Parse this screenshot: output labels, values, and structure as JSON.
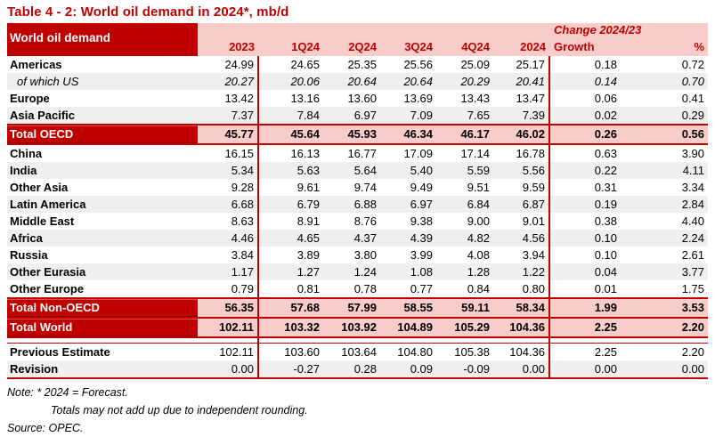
{
  "title": "Table 4 - 2: World oil demand in 2024*, mb/d",
  "colors": {
    "dark_red": "#C00000",
    "pink": "#F8CCC8",
    "stripe_gray": "#EFEFEF",
    "text": "#000000",
    "total_label_text": "#FFFFFF"
  },
  "header": {
    "label": "World oil demand",
    "change_label": "Change 2024/23",
    "columns": [
      "2023",
      "1Q24",
      "2Q24",
      "3Q24",
      "4Q24",
      "2024",
      "Growth",
      "%"
    ]
  },
  "rows": [
    {
      "label": "Americas",
      "type": "normal",
      "values": [
        "24.99",
        "24.65",
        "25.35",
        "25.56",
        "25.09",
        "25.17",
        "0.18",
        "0.72"
      ]
    },
    {
      "label": "of which US",
      "type": "italic",
      "values": [
        "20.27",
        "20.06",
        "20.64",
        "20.64",
        "20.29",
        "20.41",
        "0.14",
        "0.70"
      ]
    },
    {
      "label": "Europe",
      "type": "normal",
      "values": [
        "13.42",
        "13.16",
        "13.60",
        "13.69",
        "13.43",
        "13.47",
        "0.06",
        "0.41"
      ]
    },
    {
      "label": "Asia Pacific",
      "type": "normal",
      "values": [
        "7.37",
        "7.84",
        "6.97",
        "7.09",
        "7.65",
        "7.39",
        "0.02",
        "0.29"
      ]
    },
    {
      "label": "Total OECD",
      "type": "total",
      "values": [
        "45.77",
        "45.64",
        "45.93",
        "46.34",
        "46.17",
        "46.02",
        "0.26",
        "0.56"
      ]
    },
    {
      "label": "China",
      "type": "normal",
      "values": [
        "16.15",
        "16.13",
        "16.77",
        "17.09",
        "17.14",
        "16.78",
        "0.63",
        "3.90"
      ]
    },
    {
      "label": "India",
      "type": "normal",
      "values": [
        "5.34",
        "5.63",
        "5.64",
        "5.40",
        "5.59",
        "5.56",
        "0.22",
        "4.11"
      ]
    },
    {
      "label": "Other Asia",
      "type": "normal",
      "values": [
        "9.28",
        "9.61",
        "9.74",
        "9.49",
        "9.51",
        "9.59",
        "0.31",
        "3.34"
      ]
    },
    {
      "label": "Latin America",
      "type": "normal",
      "values": [
        "6.68",
        "6.79",
        "6.88",
        "6.97",
        "6.84",
        "6.87",
        "0.19",
        "2.84"
      ]
    },
    {
      "label": "Middle East",
      "type": "normal",
      "values": [
        "8.63",
        "8.91",
        "8.76",
        "9.38",
        "9.00",
        "9.01",
        "0.38",
        "4.40"
      ]
    },
    {
      "label": "Africa",
      "type": "normal",
      "values": [
        "4.46",
        "4.65",
        "4.37",
        "4.39",
        "4.82",
        "4.56",
        "0.10",
        "2.24"
      ]
    },
    {
      "label": "Russia",
      "type": "normal",
      "values": [
        "3.84",
        "3.89",
        "3.80",
        "3.99",
        "4.08",
        "3.94",
        "0.10",
        "2.61"
      ]
    },
    {
      "label": "Other Eurasia",
      "type": "normal",
      "values": [
        "1.17",
        "1.27",
        "1.24",
        "1.08",
        "1.28",
        "1.22",
        "0.04",
        "3.77"
      ]
    },
    {
      "label": "Other Europe",
      "type": "normal",
      "values": [
        "0.79",
        "0.81",
        "0.78",
        "0.77",
        "0.84",
        "0.80",
        "0.01",
        "1.75"
      ]
    },
    {
      "label": "Total Non-OECD",
      "type": "total",
      "values": [
        "56.35",
        "57.68",
        "57.99",
        "58.55",
        "59.11",
        "58.34",
        "1.99",
        "3.53"
      ]
    },
    {
      "label": "Total World",
      "type": "total",
      "values": [
        "102.11",
        "103.32",
        "103.92",
        "104.89",
        "105.29",
        "104.36",
        "2.25",
        "2.20"
      ]
    }
  ],
  "estimate_rows": [
    {
      "label": "Previous Estimate",
      "type": "normal",
      "values": [
        "102.11",
        "103.60",
        "103.64",
        "104.80",
        "105.38",
        "104.36",
        "2.25",
        "2.20"
      ]
    },
    {
      "label": "Revision",
      "type": "normal",
      "values": [
        "0.00",
        "-0.27",
        "0.28",
        "0.09",
        "-0.09",
        "0.00",
        "0.00",
        "0.00"
      ]
    }
  ],
  "notes": {
    "note": "Note: * 2024 = Forecast.",
    "note2": "Totals may not add up due to independent rounding.",
    "source": "Source: OPEC."
  }
}
